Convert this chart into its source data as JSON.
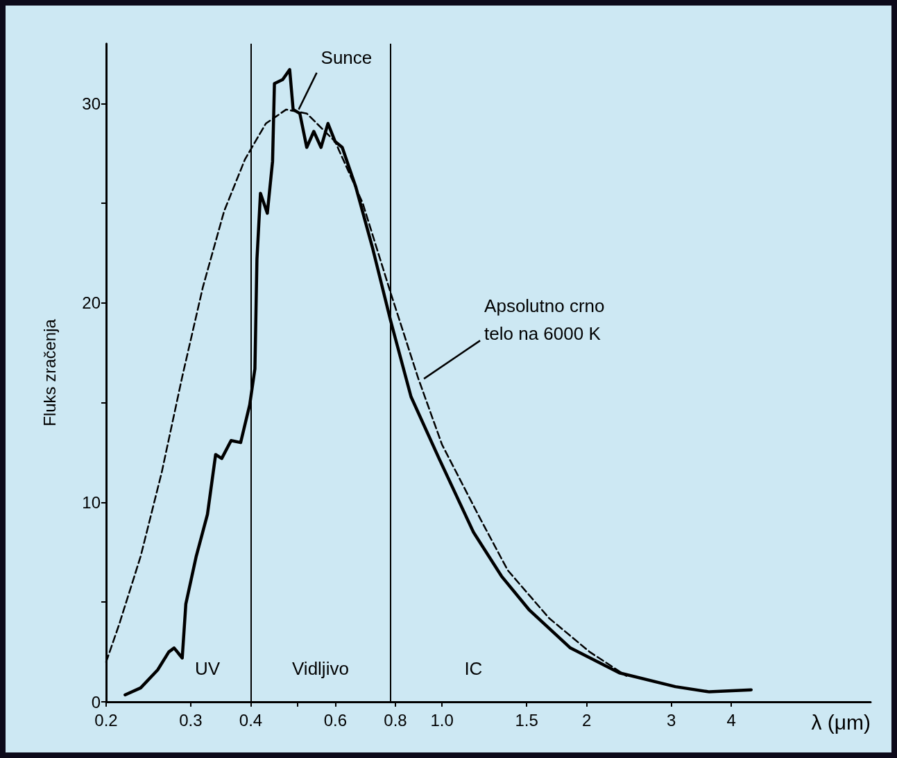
{
  "chart_data": {
    "type": "line",
    "xlabel": "λ (μm)",
    "ylabel": "Fluks zračenja",
    "log": "x",
    "xlim": [
      0.2,
      7.8
    ],
    "ylim": [
      0,
      33
    ],
    "xticks": [
      0.2,
      0.3,
      0.4,
      {
        "value": 0.5,
        "label": null
      },
      0.6,
      0.8,
      {
        "value": 1,
        "label": "1.0"
      },
      1.5,
      2,
      3,
      4
    ],
    "yticks": [
      0,
      {
        "value": 5,
        "label": null
      },
      10,
      {
        "value": 15,
        "label": null
      },
      20,
      {
        "value": 25,
        "label": null
      },
      30
    ],
    "grid": false,
    "marker": "none",
    "series": [
      {
        "color": "#000000",
        "line_style": "solid",
        "x": [
          0.219,
          0.236,
          0.256,
          0.27,
          0.277,
          0.288,
          0.293,
          0.308,
          0.325,
          0.338,
          0.348,
          0.364,
          0.381,
          0.398,
          0.408,
          0.412,
          0.419,
          0.433,
          0.444,
          0.448,
          0.466,
          0.482,
          0.49,
          0.506,
          0.523,
          0.541,
          0.56,
          0.579,
          0.599,
          0.62,
          0.662,
          0.718,
          0.782,
          0.862,
          0.986,
          1.163,
          1.33,
          1.52,
          1.85,
          2.34,
          3.06,
          3.6,
          4.4
        ],
        "values": [
          0.35,
          0.7,
          1.6,
          2.5,
          2.7,
          2.2,
          4.9,
          7.3,
          9.4,
          12.4,
          12.2,
          13.1,
          13.0,
          14.9,
          16.7,
          22.2,
          25.5,
          24.5,
          27.1,
          31.0,
          31.2,
          31.7,
          29.7,
          29.5,
          27.8,
          28.6,
          27.8,
          29.0,
          28.1,
          27.8,
          25.8,
          22.7,
          19.1,
          15.3,
          12.2,
          8.5,
          6.3,
          4.6,
          2.7,
          1.45,
          0.76,
          0.5,
          0.6
        ]
      },
      {
        "color": "#000000",
        "line_style": "dashed",
        "x": [
          0.2,
          0.213,
          0.236,
          0.261,
          0.288,
          0.318,
          0.352,
          0.389,
          0.43,
          0.474,
          0.523,
          0.599,
          0.684,
          0.782,
          0.893,
          1.0,
          1.2,
          1.37,
          1.67,
          2.03,
          2.42
        ],
        "values": [
          2.0,
          3.9,
          7.3,
          11.5,
          16.3,
          20.8,
          24.6,
          27.2,
          29.0,
          29.7,
          29.5,
          28.1,
          25.0,
          20.5,
          16.2,
          12.9,
          9.2,
          6.6,
          4.2,
          2.5,
          1.3
        ]
      }
    ],
    "ref_lines": [
      {
        "axis": "x",
        "value": 0.4
      },
      {
        "axis": "x",
        "value": 0.78
      }
    ],
    "annotations": [
      {
        "text": "Sunce",
        "x": 0.49,
        "y": 29.7
      },
      {
        "text": "Apsolutno crno\ntelo na 6000 K",
        "x": 0.893,
        "y": 16.2
      },
      "UV",
      "Vidljivo",
      "IC"
    ]
  }
}
